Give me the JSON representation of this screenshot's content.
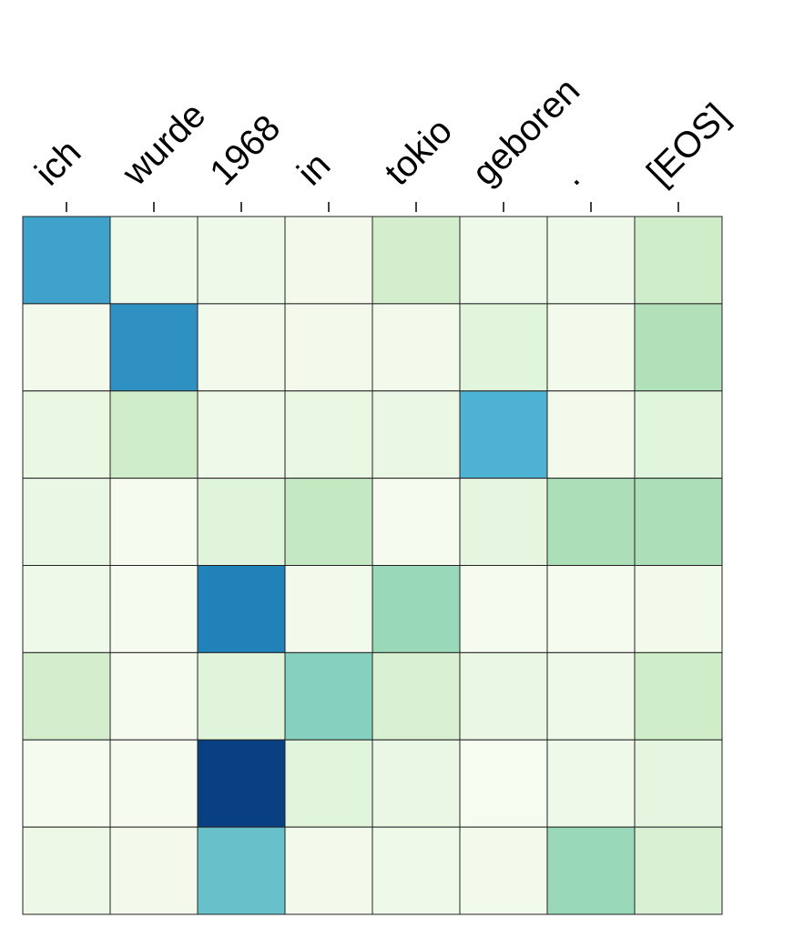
{
  "chart_data": {
    "type": "heatmap",
    "x": [
      "ich",
      "wurde",
      "1968",
      "in",
      "tokio",
      "geboren",
      ".",
      "[EOS]"
    ],
    "values": [
      [
        0.65,
        0.05,
        0.05,
        0.03,
        0.2,
        0.05,
        0.05,
        0.22
      ],
      [
        0.03,
        0.7,
        0.04,
        0.03,
        0.04,
        0.12,
        0.04,
        0.33
      ],
      [
        0.08,
        0.22,
        0.05,
        0.08,
        0.07,
        0.6,
        0.03,
        0.12
      ],
      [
        0.07,
        0.02,
        0.13,
        0.27,
        0.02,
        0.1,
        0.35,
        0.35
      ],
      [
        0.05,
        0.02,
        0.75,
        0.04,
        0.4,
        0.02,
        0.02,
        0.04
      ],
      [
        0.2,
        0.02,
        0.13,
        0.45,
        0.17,
        0.08,
        0.05,
        0.22
      ],
      [
        0.02,
        0.02,
        0.95,
        0.12,
        0.07,
        0.01,
        0.05,
        0.1
      ],
      [
        0.06,
        0.03,
        0.53,
        0.03,
        0.05,
        0.04,
        0.4,
        0.17
      ]
    ],
    "colormap": "GnBu"
  }
}
